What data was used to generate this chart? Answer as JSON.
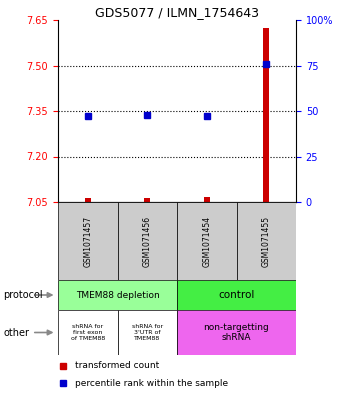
{
  "title": "GDS5077 / ILMN_1754643",
  "samples": [
    "GSM1071457",
    "GSM1071456",
    "GSM1071454",
    "GSM1071455"
  ],
  "transformed_counts": [
    7.062,
    7.062,
    7.068,
    7.625
  ],
  "percentile_ranks": [
    47,
    48,
    47,
    76
  ],
  "ylim": [
    7.05,
    7.65
  ],
  "yticks_left": [
    7.05,
    7.2,
    7.35,
    7.5,
    7.65
  ],
  "yticks_right": [
    0,
    25,
    50,
    75,
    100
  ],
  "hlines": [
    7.2,
    7.35,
    7.5
  ],
  "bar_color": "#cc0000",
  "dot_color": "#0000cc",
  "protocol_labels": [
    "TMEM88 depletion",
    "control"
  ],
  "protocol_color_left": "#99ff99",
  "protocol_color_right": "#44ee44",
  "other_labels": [
    "shRNA for\nfirst exon\nof TMEM88",
    "shRNA for\n3'UTR of\nTMEM88",
    "non-targetting\nshRNA"
  ],
  "other_color_white": "#ffffff",
  "other_color_magenta": "#ee66ee",
  "legend_red_label": "transformed count",
  "legend_blue_label": "percentile rank within the sample",
  "bg_color": "#ffffff",
  "grid_color": "#c8c8c8",
  "sample_box_color": "#cccccc"
}
